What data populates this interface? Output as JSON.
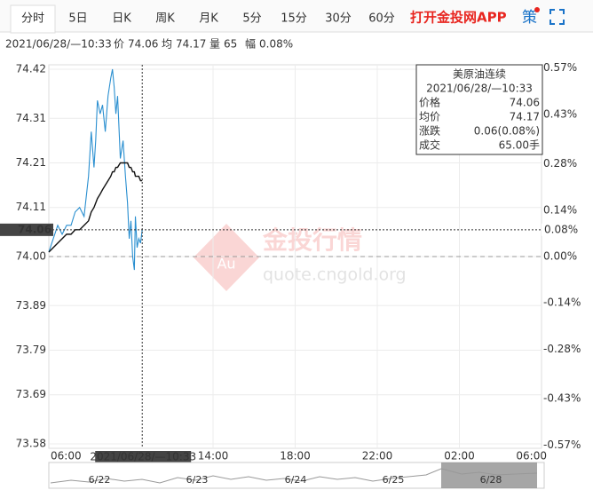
{
  "toolbar": {
    "tabs": [
      "分时",
      "5日",
      "日K",
      "周K",
      "月K",
      "5分",
      "15分",
      "30分",
      "60分"
    ],
    "app_link": "打开金投网APP",
    "strategy": "策"
  },
  "info_bar": {
    "time": "2021/06/28/—10:33",
    "price_label": "价",
    "price": "74.06",
    "avg_label": "均",
    "avg": "74.17",
    "volume_label": "量",
    "volume": "65",
    "range_label": "幅",
    "range": "0.08%"
  },
  "tooltip": {
    "title": "美原油连续",
    "time": "2021/06/28/—10:33",
    "rows": [
      [
        "价格",
        "74.06"
      ],
      [
        "均价",
        "74.17"
      ],
      [
        "涨跌",
        "0.06(0.08%)"
      ],
      [
        "成交",
        "65.00手"
      ]
    ]
  },
  "watermark": {
    "logo": "Au",
    "name": "金投行情",
    "url": "quote.cngold.org"
  },
  "navigator": {
    "dates": [
      "6/22",
      "6/23",
      "6/24",
      "6/25",
      "6/28"
    ]
  },
  "chart_data": {
    "type": "line",
    "x": [
      "06:00",
      "06:26",
      "06:39",
      "06:52",
      "07:05",
      "07:17",
      "07:30",
      "07:43",
      "07:56",
      "08:04",
      "08:12",
      "08:17",
      "08:22",
      "08:30",
      "08:37",
      "08:45",
      "08:53",
      "09:01",
      "09:06",
      "09:11",
      "09:16",
      "09:21",
      "09:29",
      "09:37",
      "09:44",
      "09:50",
      "09:55",
      "10:00",
      "10:05",
      "10:10",
      "10:13",
      "10:18",
      "10:23",
      "10:28",
      "10:33"
    ],
    "series": [
      {
        "name": "价格",
        "color": "#2a8fd0",
        "values": [
          74.01,
          74.07,
          74.05,
          74.07,
          74.07,
          74.1,
          74.11,
          74.09,
          74.18,
          74.28,
          74.2,
          74.26,
          74.35,
          74.32,
          74.34,
          74.28,
          74.36,
          74.4,
          74.42,
          74.38,
          74.32,
          74.36,
          74.22,
          74.26,
          74.18,
          74.12,
          74.04,
          74.08,
          74.0,
          73.97,
          74.09,
          74.02,
          74.04,
          74.03,
          74.06
        ]
      },
      {
        "name": "均价",
        "color": "#111111",
        "values": [
          74.01,
          74.03,
          74.04,
          74.05,
          74.05,
          74.06,
          74.06,
          74.07,
          74.08,
          74.1,
          74.11,
          74.12,
          74.13,
          74.14,
          74.15,
          74.16,
          74.17,
          74.18,
          74.19,
          74.19,
          74.2,
          74.2,
          74.21,
          74.21,
          74.21,
          74.21,
          74.2,
          74.2,
          74.19,
          74.19,
          74.18,
          74.18,
          74.18,
          74.17,
          74.17
        ]
      }
    ],
    "ylim": [
      73.57,
      74.43
    ],
    "yticks": [
      74.42,
      74.31,
      74.21,
      74.11,
      {
        "value": 74,
        "label": "74.00"
      },
      73.89,
      73.79,
      73.69,
      73.58
    ],
    "y2lim": [
      -0.58,
      0.58
    ],
    "y2ticks": [
      {
        "value": 0.57,
        "label": "0.57%"
      },
      {
        "value": 0.43,
        "label": "0.43%"
      },
      {
        "value": 0.28,
        "label": "0.28%"
      },
      {
        "value": 0.14,
        "label": "0.14%"
      },
      {
        "value": 0,
        "label": "0.00%"
      },
      {
        "value": -0.14,
        "label": "-0.14%"
      },
      {
        "value": -0.28,
        "label": "-0.28%"
      },
      {
        "value": -0.43,
        "label": "-0.43%"
      },
      {
        "value": -0.57,
        "label": "-0.57%"
      }
    ],
    "xticks": [
      "06:00",
      "14:00",
      "18:00",
      "22:00",
      "02:00",
      "06:00"
    ],
    "prev_close": 74,
    "current_price": {
      "value": 74.06,
      "change_pct": {
        "value": 0.08,
        "label": "0.08%"
      }
    },
    "crosshair": {
      "x": "10:33",
      "label": "2021/06/28/—10:33"
    },
    "up_color": "#e02020",
    "down_color": "#1aa01a",
    "grid": true
  }
}
